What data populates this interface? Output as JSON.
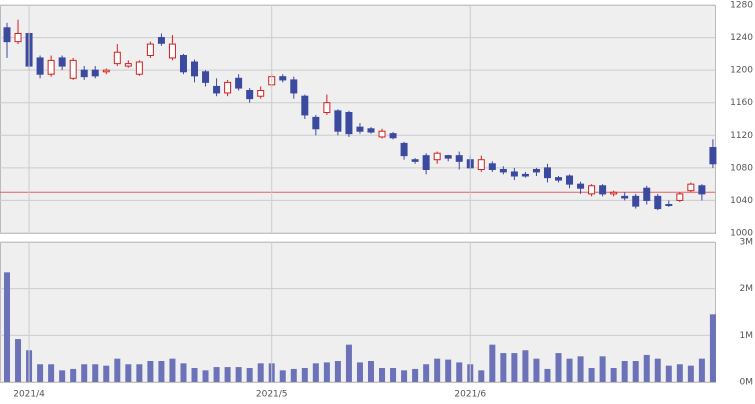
{
  "chart_data": [
    {
      "type": "candlestick",
      "open": [
        1252,
        1235,
        1245,
        1215,
        1195,
        1215,
        1190,
        1200,
        1200,
        1198,
        1208,
        1205,
        1195,
        1218,
        1240,
        1215,
        1218,
        1210,
        1198,
        1180,
        1172,
        1190,
        1175,
        1168,
        1182,
        1192,
        1188,
        1168,
        1142,
        1148,
        1150,
        1148,
        1130,
        1128,
        1118,
        1122,
        1110,
        1090,
        1095,
        1090,
        1095,
        1095,
        1090,
        1078,
        1085,
        1078,
        1075,
        1072,
        1078,
        1080,
        1068,
        1070,
        1060,
        1048,
        1058,
        1048,
        1045,
        1045,
        1055,
        1045,
        1035,
        1040,
        1052,
        1058,
        1105
      ],
      "high": [
        1258,
        1262,
        1248,
        1218,
        1218,
        1218,
        1215,
        1205,
        1205,
        1202,
        1232,
        1212,
        1212,
        1235,
        1245,
        1243,
        1220,
        1213,
        1200,
        1190,
        1188,
        1195,
        1178,
        1180,
        1195,
        1195,
        1192,
        1170,
        1145,
        1170,
        1152,
        1150,
        1135,
        1130,
        1128,
        1124,
        1112,
        1092,
        1098,
        1100,
        1096,
        1100,
        1095,
        1095,
        1088,
        1082,
        1080,
        1075,
        1080,
        1085,
        1070,
        1072,
        1063,
        1060,
        1060,
        1052,
        1050,
        1048,
        1058,
        1048,
        1040,
        1050,
        1062,
        1060,
        1115
      ],
      "low": [
        1215,
        1232,
        1200,
        1190,
        1192,
        1200,
        1188,
        1188,
        1190,
        1195,
        1205,
        1203,
        1193,
        1215,
        1230,
        1212,
        1195,
        1185,
        1180,
        1168,
        1168,
        1175,
        1160,
        1165,
        1180,
        1185,
        1165,
        1140,
        1120,
        1145,
        1120,
        1118,
        1122,
        1122,
        1116,
        1115,
        1090,
        1085,
        1072,
        1085,
        1088,
        1078,
        1078,
        1075,
        1075,
        1072,
        1065,
        1068,
        1070,
        1062,
        1062,
        1055,
        1048,
        1045,
        1045,
        1045,
        1040,
        1030,
        1035,
        1028,
        1032,
        1038,
        1050,
        1040,
        1080
      ],
      "close": [
        1235,
        1245,
        1205,
        1195,
        1212,
        1205,
        1212,
        1192,
        1193,
        1200,
        1222,
        1208,
        1210,
        1232,
        1233,
        1232,
        1198,
        1193,
        1185,
        1172,
        1185,
        1178,
        1165,
        1175,
        1192,
        1188,
        1172,
        1145,
        1128,
        1160,
        1125,
        1122,
        1125,
        1124,
        1125,
        1117,
        1095,
        1088,
        1078,
        1098,
        1092,
        1088,
        1080,
        1090,
        1078,
        1075,
        1070,
        1070,
        1075,
        1068,
        1065,
        1060,
        1055,
        1058,
        1048,
        1050,
        1043,
        1033,
        1040,
        1030,
        1034,
        1048,
        1060,
        1048,
        1085
      ],
      "up_color": "#d42020",
      "down_color": "#3b4a9e",
      "reference_line": 1050,
      "reference_color": "#e06060",
      "ylim": [
        1000,
        1280
      ],
      "yticks": [
        1000,
        1040,
        1080,
        1120,
        1160,
        1200,
        1240,
        1280
      ],
      "grid": true
    },
    {
      "type": "bar",
      "categories": [
        null,
        null,
        "2021/4",
        null,
        null,
        null,
        null,
        null,
        null,
        null,
        null,
        null,
        null,
        null,
        null,
        null,
        null,
        null,
        null,
        null,
        null,
        null,
        null,
        null,
        "2021/5",
        null,
        null,
        null,
        null,
        null,
        null,
        null,
        null,
        null,
        null,
        null,
        null,
        null,
        null,
        null,
        null,
        null,
        "2021/6",
        null,
        null,
        null,
        null,
        null,
        null,
        null,
        null,
        null,
        null,
        null,
        null,
        null,
        null,
        null,
        null,
        null,
        null,
        null,
        null,
        null,
        null
      ],
      "values": [
        2350000,
        920000,
        680000,
        380000,
        380000,
        250000,
        280000,
        380000,
        380000,
        350000,
        500000,
        380000,
        380000,
        450000,
        450000,
        500000,
        400000,
        300000,
        250000,
        320000,
        320000,
        320000,
        300000,
        400000,
        400000,
        250000,
        280000,
        300000,
        400000,
        420000,
        450000,
        800000,
        420000,
        450000,
        300000,
        300000,
        250000,
        280000,
        380000,
        500000,
        480000,
        420000,
        380000,
        250000,
        800000,
        620000,
        620000,
        680000,
        500000,
        280000,
        620000,
        500000,
        550000,
        300000,
        550000,
        300000,
        450000,
        450000,
        580000,
        500000,
        350000,
        380000,
        350000,
        500000,
        1450000
      ],
      "color": "#6b72b8",
      "ylim": [
        0,
        3000000
      ],
      "yticks": [
        {
          "value": 0,
          "label": "0M"
        },
        {
          "value": 1000000,
          "label": "1M"
        },
        {
          "value": 2000000,
          "label": "2M"
        },
        {
          "value": 3000000,
          "label": "3M"
        }
      ],
      "grid": true
    }
  ]
}
